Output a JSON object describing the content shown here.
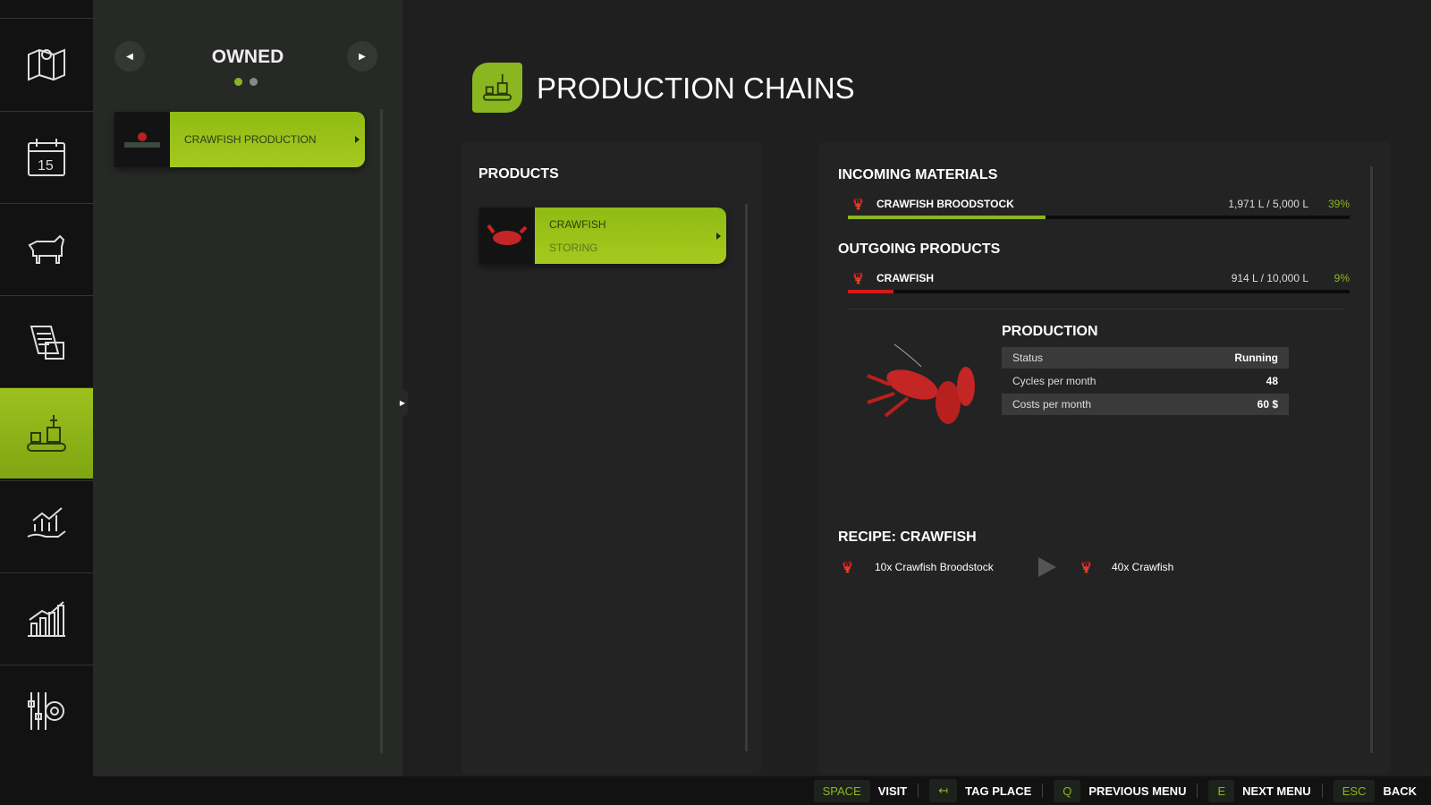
{
  "sidebar": {
    "items": [
      {
        "icon": "map-icon"
      },
      {
        "icon": "calendar-icon"
      },
      {
        "icon": "animals-icon"
      },
      {
        "icon": "contracts-icon"
      },
      {
        "icon": "production-icon",
        "active": true
      },
      {
        "icon": "finances-icon"
      },
      {
        "icon": "statistics-icon"
      },
      {
        "icon": "settings-icon"
      }
    ]
  },
  "left": {
    "title": "OWNED",
    "page": 1,
    "pages": 2,
    "items": [
      {
        "label": "CRAWFISH PRODUCTION"
      }
    ]
  },
  "header": {
    "title": "PRODUCTION CHAINS",
    "accent": "#94bf19"
  },
  "products": {
    "title": "PRODUCTS",
    "items": [
      {
        "name": "CRAWFISH",
        "status": "STORING"
      }
    ]
  },
  "incoming": {
    "title": "INCOMING MATERIALS",
    "items": [
      {
        "name": "CRAWFISH BROODSTOCK",
        "amount": "1,971 L / 5,000 L",
        "percent": "39%",
        "fill": 39.4,
        "color": "#8ab620"
      }
    ]
  },
  "outgoing": {
    "title": "OUTGOING PRODUCTS",
    "items": [
      {
        "name": "CRAWFISH",
        "amount": "914 L / 10,000 L",
        "percent": "9%",
        "fill": 9.1,
        "color": "#d61a1a"
      }
    ]
  },
  "production": {
    "title": "PRODUCTION",
    "rows": [
      {
        "label": "Status",
        "value": "Running"
      },
      {
        "label": "Cycles per month",
        "value": "48"
      },
      {
        "label": "Costs per month",
        "value": "60 $"
      }
    ]
  },
  "recipe": {
    "title": "RECIPE: CRAWFISH",
    "input": "10x Crawfish Broodstock",
    "output": "40x Crawfish"
  },
  "footer": [
    {
      "key": "SPACE",
      "label": "VISIT"
    },
    {
      "key": "↤",
      "label": "TAG PLACE"
    },
    {
      "key": "Q",
      "label": "PREVIOUS MENU"
    },
    {
      "key": "E",
      "label": "NEXT MENU"
    },
    {
      "key": "ESC",
      "label": "BACK"
    }
  ]
}
